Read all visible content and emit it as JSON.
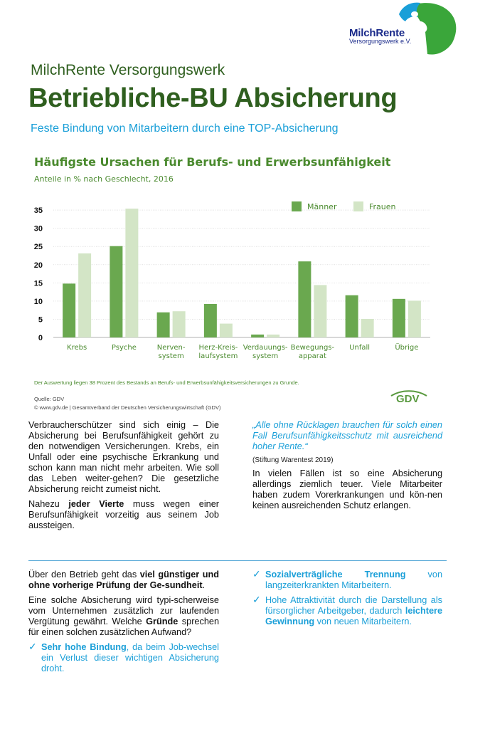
{
  "logo": {
    "name_part1": "Milch",
    "name_part2": "Rente",
    "subtitle": "Versorgungswerk e.V."
  },
  "header": {
    "org": "MilchRente Versorgungswerk",
    "title": "Betriebliche-BU Absicherung",
    "subtitle": "Feste Bindung von Mitarbeitern durch eine TOP-Absicherung"
  },
  "chart_data": {
    "type": "bar",
    "title": "Häufigste Ursachen für Berufs- und Erwerbsunfähigkeit",
    "subtitle": "Anteile in % nach Geschlecht, 2016",
    "categories": [
      [
        "Krebs"
      ],
      [
        "Psyche"
      ],
      [
        "Nerven-",
        "system"
      ],
      [
        "Herz-Kreis-",
        "laufsystem"
      ],
      [
        "Verdauungs-",
        "system"
      ],
      [
        "Bewegungs-",
        "apparat"
      ],
      [
        "Unfall"
      ],
      [
        "Übrige"
      ]
    ],
    "series": [
      {
        "name": "Männer",
        "color": "#6aa84f",
        "values": [
          14.8,
          25.1,
          6.9,
          9.2,
          0.8,
          20.9,
          11.6,
          10.6
        ]
      },
      {
        "name": "Frauen",
        "color": "#d3e5c6",
        "values": [
          23.1,
          35.4,
          7.2,
          3.8,
          0.8,
          14.4,
          5.1,
          10.1
        ]
      }
    ],
    "yticks": [
      0,
      5,
      10,
      15,
      20,
      25,
      30,
      35
    ],
    "ylim": [
      0,
      36
    ],
    "legend": "top-right",
    "grid": true
  },
  "chart_notes": {
    "note": "Der Auswertung liegen 38 Prozent des Bestands an Berufs- und Erwerbsunfähigkeitsversicherungen zu Grunde.",
    "source1": "Quelle: GDV",
    "source2": "© www.gdv.de | Gesamtverband der Deutschen Versicherungswirtschaft (GDV)",
    "gdv_logo": "GDV"
  },
  "left_top": {
    "p1": "Verbraucherschützer sind sich einig – Die Absicherung bei Berufsunfähigkeit gehört zu den notwendigen Versicherungen. Krebs, ein Unfall oder eine psychische Erkrankung und schon kann man nicht mehr arbeiten. Wie soll das Leben weiter-gehen? Die gesetzliche Absicherung reicht zumeist nicht.",
    "p2_a": "Nahezu ",
    "p2_b": "jeder Vierte",
    "p2_c": " muss wegen einer Berufsunfähigkeit vorzeitig aus seinem Job aussteigen."
  },
  "right_top": {
    "quote": "„Alle ohne Rücklagen brauchen für solch einen Fall Berufsunfähigkeitsschutz mit ausreichend hoher Rente.“",
    "quote_source": "(Stiftung Warentest 2019)",
    "p1": "In vielen Fällen ist so eine Absicherung allerdings ziemlich teuer. Viele Mitarbeiter haben zudem Vorerkrankungen und kön-nen keinen ausreichenden Schutz erlangen."
  },
  "left_bottom": {
    "p1_a": "Über den Betrieb geht das ",
    "p1_b": "viel günstiger und ohne vorherige Prüfung der Ge-sundheit",
    "p1_c": ".",
    "p2_a": "Eine solche Absicherung wird typi-scherweise vom Unternehmen zusätzlich zur laufenden Vergütung gewährt. Welche ",
    "p2_b": "Gründe",
    "p2_c": " sprechen für einen solchen zusätzlichen Aufwand?",
    "check1_bold": "Sehr hohe Bindung",
    "check1_rest": ", da beim Job-wechsel ein Verlust dieser wichtigen Absicherung droht."
  },
  "right_bottom": {
    "check1_bold": "Sozialverträgliche Trennung",
    "check1_rest": " von langzeiterkrankten Mitarbeitern.",
    "check2_a": "Hohe Attraktivität durch die Darstellung als fürsorglicher Arbeitgeber, dadurch ",
    "check2_bold": "leichtere Gewinnung",
    "check2_c": " von neuen Mitarbeitern."
  },
  "check_symbol": "✓"
}
